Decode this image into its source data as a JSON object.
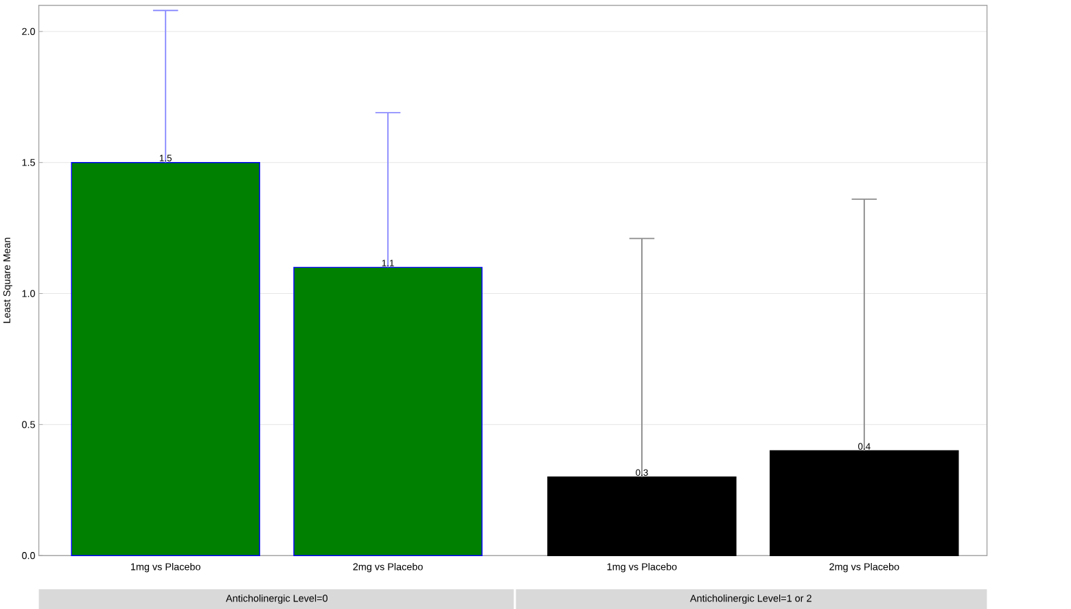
{
  "chart_data": {
    "type": "bar",
    "ylabel": "Least Square Mean",
    "categories": [
      "1mg vs Placebo",
      "2mg vs Placebo",
      "1mg vs Placebo",
      "2mg vs Placebo"
    ],
    "values": [
      1.5,
      1.1,
      0.3,
      0.4
    ],
    "colors": [
      "#008000",
      "#008000",
      "#000000",
      "#000000"
    ],
    "errors": [
      [
        1.5,
        2.08
      ],
      [
        1.1,
        1.69
      ],
      [
        0.3,
        1.21
      ],
      [
        0.4,
        1.36
      ]
    ],
    "data_labels": true,
    "ylim": [
      0,
      2.1
    ],
    "yticks": [
      {
        "value": 0,
        "label": "0.0"
      },
      {
        "value": 0.5,
        "label": "0.5"
      },
      {
        "value": 1,
        "label": "1.0"
      },
      {
        "value": 1.5,
        "label": "1.5"
      },
      {
        "value": 2,
        "label": "2.0"
      }
    ],
    "grid": "y",
    "annotations": [
      "Anticholinergic Level=0",
      "Anticholinergic Level=1 or 2"
    ]
  }
}
